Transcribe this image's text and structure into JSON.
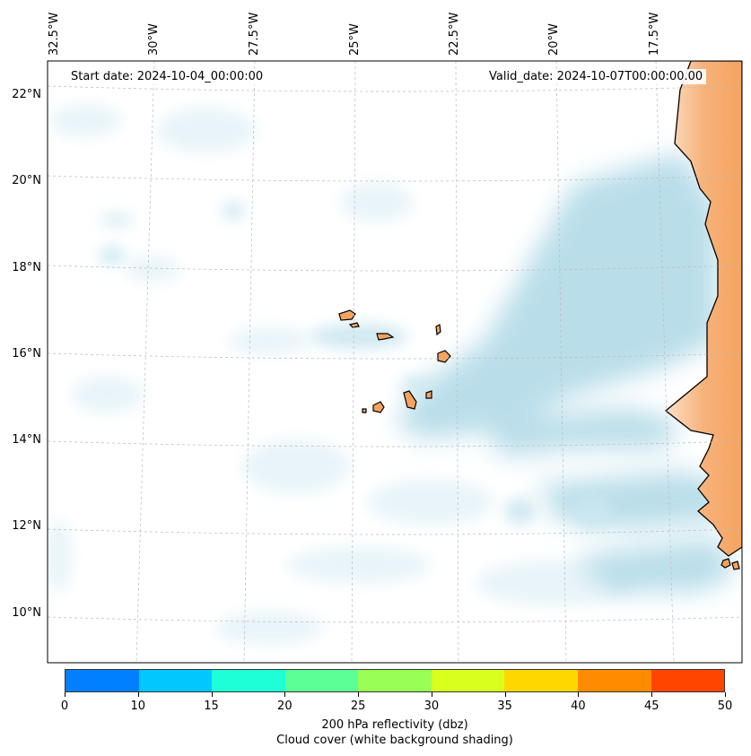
{
  "map": {
    "start_date": "Start date: 2024-10-04_00:00:00",
    "valid_date": "Valid_date: 2024-10-07T00:00:00.00",
    "lon_labels": [
      "32.5°W",
      "30°W",
      "27.5°W",
      "25°W",
      "22.5°W",
      "20°W",
      "17.5°W"
    ],
    "lat_labels": [
      "22°N",
      "20°N",
      "18°N",
      "16°N",
      "14°N",
      "12°N",
      "10°N"
    ],
    "land_color": "#f4a460",
    "cloud_color": "#add8e6"
  },
  "colorbar": {
    "colors": [
      "#0080ff",
      "#00c8ff",
      "#1effd8",
      "#5cff96",
      "#99ff55",
      "#d8ff1e",
      "#ffd700",
      "#ff8c00",
      "#ff4500"
    ],
    "tick_labels": [
      "0",
      "10",
      "15",
      "20",
      "25",
      "30",
      "35",
      "40",
      "45",
      "50"
    ],
    "title": "200 hPa reflectivity (dbz)",
    "subtitle": "Cloud cover (white background shading)"
  }
}
